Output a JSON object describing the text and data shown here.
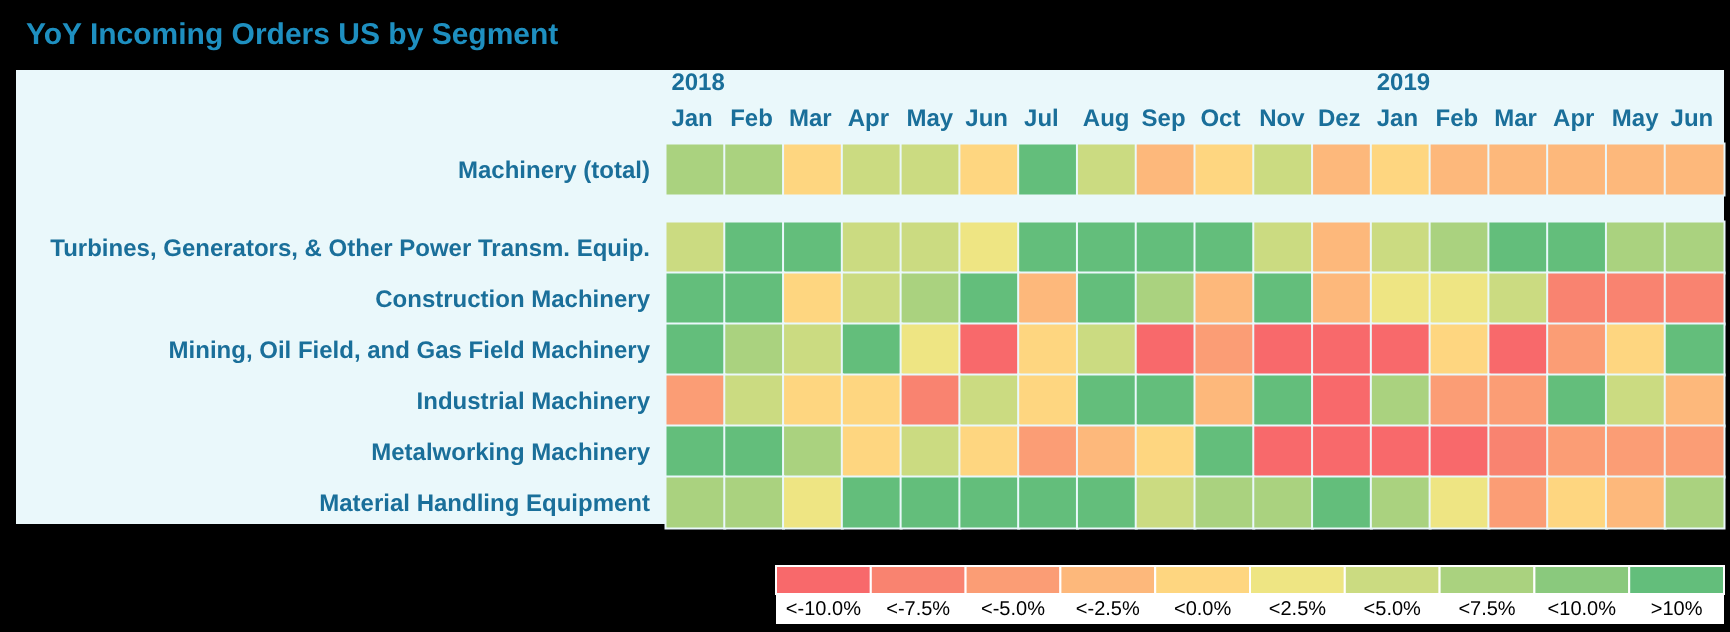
{
  "chart_data": {
    "type": "heatmap",
    "title": "YoY Incoming Orders US by Segment",
    "categories": [
      "2018\nJan",
      "Feb",
      "Mar",
      "Apr",
      "May",
      "Jun",
      "Jul",
      "Aug",
      "Sep",
      "Oct",
      "Nov",
      "Dez",
      "2019\nJan",
      "Feb",
      "Mar",
      "Apr",
      "May",
      "Jun"
    ],
    "y_categories": [
      "Machinery (total)",
      "Turbines, Generators, & Other Power Transm. Equip.",
      "Construction Machinery",
      "Mining, Oil Field, and Gas Field Machinery",
      "Industrial Machinery",
      "Metalworking Machinery",
      "Material Handling Equipment"
    ],
    "cells": [
      [
        6.25,
        6.25,
        -1.25,
        3.75,
        3.75,
        -1.25,
        11.25,
        3.75,
        -3.75,
        -1.25,
        3.75,
        -3.75,
        -1.25,
        -3.75,
        -3.75,
        -3.75,
        -3.75,
        -3.75
      ],
      [
        3.75,
        11.25,
        11.25,
        3.75,
        3.75,
        1.25,
        11.25,
        11.25,
        11.25,
        11.25,
        3.75,
        -3.75,
        3.75,
        6.25,
        11.25,
        11.25,
        6.25,
        6.25
      ],
      [
        11.25,
        11.25,
        -1.25,
        3.75,
        6.25,
        11.25,
        -3.75,
        11.25,
        6.25,
        -3.75,
        11.25,
        -3.75,
        1.25,
        1.25,
        3.75,
        -8.75,
        -8.75,
        -8.75
      ],
      [
        11.25,
        6.25,
        3.75,
        11.25,
        1.25,
        -11.25,
        -1.25,
        3.75,
        -11.25,
        -6.25,
        -11.25,
        -11.25,
        -11.25,
        -1.25,
        -11.25,
        -6.25,
        -1.25,
        11.25
      ],
      [
        -6.25,
        3.75,
        -1.25,
        -1.25,
        -8.75,
        3.75,
        -1.25,
        11.25,
        11.25,
        -3.75,
        11.25,
        -11.25,
        6.25,
        -6.25,
        -6.25,
        11.25,
        3.75,
        -3.75
      ],
      [
        11.25,
        11.25,
        6.25,
        -1.25,
        3.75,
        -1.25,
        -6.25,
        -3.75,
        -1.25,
        11.25,
        -11.25,
        -11.25,
        -11.25,
        -11.25,
        -8.75,
        -6.25,
        -6.25,
        -6.25
      ],
      [
        6.25,
        6.25,
        1.25,
        11.25,
        11.25,
        11.25,
        11.25,
        11.25,
        3.75,
        6.25,
        6.25,
        11.25,
        6.25,
        1.25,
        -6.25,
        -1.25,
        -3.75,
        6.25
      ]
    ],
    "clim": [
      -12.5,
      12.5
    ],
    "cticks": [
      {
        "value": -11.25,
        "label": "<-10.0%"
      },
      {
        "value": -8.75,
        "label": "<-7.5%"
      },
      {
        "value": -6.25,
        "label": "<-5.0%"
      },
      {
        "value": -3.75,
        "label": "<-2.5%"
      },
      {
        "value": -1.25,
        "label": "<0.0%"
      },
      {
        "value": 1.25,
        "label": "<2.5%"
      },
      {
        "value": 3.75,
        "label": "<5.0%"
      },
      {
        "value": 6.25,
        "label": "<7.5%"
      },
      {
        "value": 8.75,
        "label": "<10.0%"
      },
      {
        "value": 11.25,
        "label": ">10%"
      }
    ],
    "colors": [
      "#f8696b",
      "#f98370",
      "#fb9d75",
      "#fdb87b",
      "#fed680",
      "#eee583",
      "#cbdb81",
      "#aad27f",
      "#8ac97d",
      "#63be7b"
    ],
    "grid": false
  }
}
